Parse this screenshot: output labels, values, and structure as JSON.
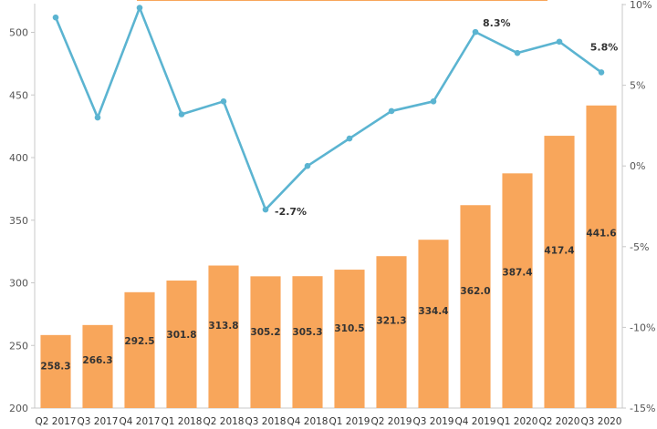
{
  "chart_data": {
    "type": "bar",
    "categories": [
      "Q2 2017",
      "Q3 2017",
      "Q4 2017",
      "Q1 2018",
      "Q2 2018",
      "Q3 2018",
      "Q4 2018",
      "Q1 2019",
      "Q2 2019",
      "Q3 2019",
      "Q4 2019",
      "Q1 2020",
      "Q2 2020",
      "Q3 2020"
    ],
    "series": [
      {
        "type": "bar",
        "axis": "left",
        "values": [
          258.3,
          266.3,
          292.5,
          301.8,
          313.8,
          305.2,
          305.3,
          310.5,
          321.3,
          334.4,
          362.0,
          387.4,
          417.4,
          441.6
        ],
        "data_labels": [
          "258.3",
          "266.3",
          "292.5",
          "301.8",
          "313.8",
          "305.2",
          "305.3",
          "310.5",
          "321.3",
          "334.4",
          "362.0",
          "387.4",
          "417.4",
          "441.6"
        ],
        "color": "#F8A65B"
      },
      {
        "type": "line",
        "axis": "right",
        "values": [
          9.2,
          3.0,
          9.8,
          3.2,
          4.0,
          -2.7,
          0.0,
          1.7,
          3.4,
          4.0,
          8.3,
          7.0,
          7.7,
          5.8
        ],
        "annotations": [
          {
            "index": 5,
            "text": "-2.7%"
          },
          {
            "index": 10,
            "text": "8.3%"
          },
          {
            "index": 13,
            "text": "5.8%"
          }
        ],
        "color": "#5BB4D1"
      }
    ],
    "y_left": {
      "ylim": [
        200,
        520
      ],
      "ticks": [
        200,
        250,
        300,
        350,
        400,
        450,
        500
      ],
      "tick_labels": [
        "200",
        "250",
        "300",
        "350",
        "400",
        "450",
        "500"
      ]
    },
    "y_right": {
      "ylim": [
        -15,
        10
      ],
      "ticks": [
        -15,
        -10,
        -5,
        0,
        5,
        10
      ],
      "tick_labels": [
        "-15%",
        "-10%",
        "-5%",
        "0%",
        "5%",
        "10%"
      ]
    },
    "title": "",
    "xlabel": "",
    "ylabel": "",
    "grid": false,
    "legend": "none"
  }
}
